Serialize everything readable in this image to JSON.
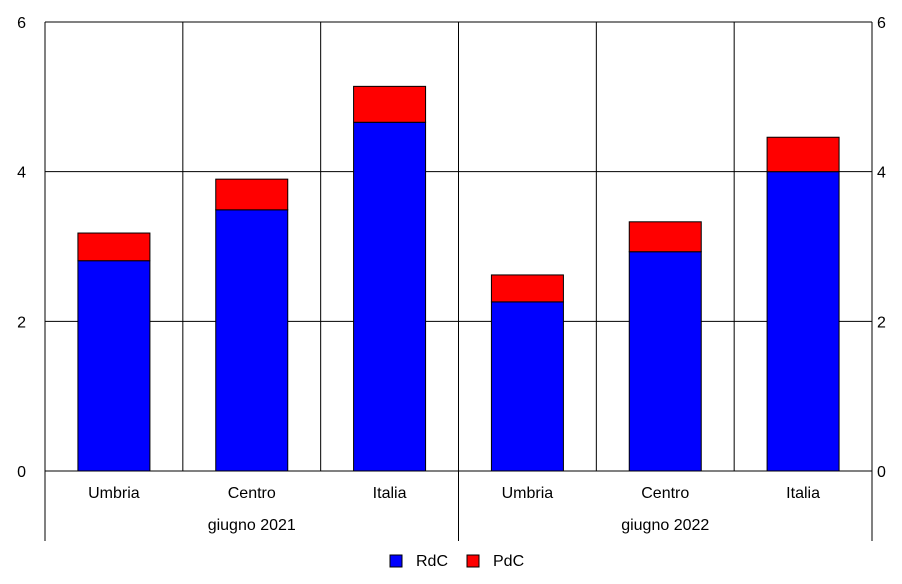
{
  "chart_data": {
    "type": "bar",
    "stacked": true,
    "categories": [
      "Umbria",
      "Centro",
      "Italia",
      "Umbria",
      "Centro",
      "Italia"
    ],
    "groups": [
      {
        "label": "giugno 2021",
        "span": [
          0,
          2
        ]
      },
      {
        "label": "giugno 2022",
        "span": [
          3,
          5
        ]
      }
    ],
    "series": [
      {
        "name": "RdC",
        "color": "#0000ff",
        "values": [
          2.81,
          3.49,
          4.66,
          2.26,
          2.93,
          4.0
        ]
      },
      {
        "name": "PdC",
        "color": "#ff0000",
        "values": [
          0.37,
          0.41,
          0.48,
          0.36,
          0.4,
          0.46
        ]
      }
    ],
    "ylim": [
      0,
      6
    ],
    "yticks": [
      "0",
      "2",
      "4",
      "6"
    ],
    "grid": true,
    "legend_position": "bottom-center",
    "title": "",
    "xlabel": "",
    "ylabel": ""
  }
}
